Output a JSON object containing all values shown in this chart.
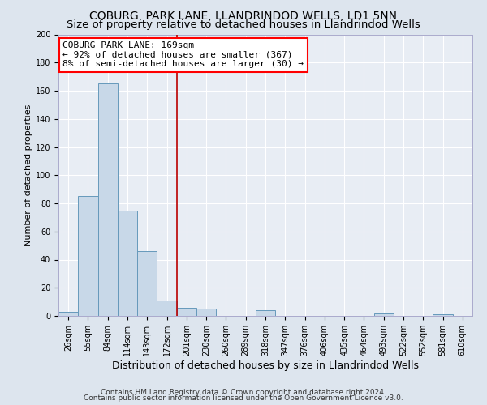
{
  "title": "COBURG, PARK LANE, LLANDRINDOD WELLS, LD1 5NN",
  "subtitle": "Size of property relative to detached houses in Llandrindod Wells",
  "xlabel": "Distribution of detached houses by size in Llandrindod Wells",
  "ylabel": "Number of detached properties",
  "bin_labels": [
    "26sqm",
    "55sqm",
    "84sqm",
    "114sqm",
    "143sqm",
    "172sqm",
    "201sqm",
    "230sqm",
    "260sqm",
    "289sqm",
    "318sqm",
    "347sqm",
    "376sqm",
    "406sqm",
    "435sqm",
    "464sqm",
    "493sqm",
    "522sqm",
    "552sqm",
    "581sqm",
    "610sqm"
  ],
  "bar_values": [
    3,
    85,
    165,
    75,
    46,
    11,
    6,
    5,
    0,
    0,
    4,
    0,
    0,
    0,
    0,
    0,
    2,
    0,
    0,
    1,
    0
  ],
  "bar_color": "#c8d8e8",
  "bar_edge_color": "#6699bb",
  "vline_x_idx": 5.5,
  "vline_color": "#bb0000",
  "annotation_title": "COBURG PARK LANE: 169sqm",
  "annotation_line1": "← 92% of detached houses are smaller (367)",
  "annotation_line2": "8% of semi-detached houses are larger (30) →",
  "ylim": [
    0,
    200
  ],
  "yticks": [
    0,
    20,
    40,
    60,
    80,
    100,
    120,
    140,
    160,
    180,
    200
  ],
  "footer1": "Contains HM Land Registry data © Crown copyright and database right 2024.",
  "footer2": "Contains public sector information licensed under the Open Government Licence v3.0.",
  "background_color": "#dde5ee",
  "plot_bg_color": "#e8edf4",
  "grid_color": "#ffffff",
  "title_fontsize": 10,
  "subtitle_fontsize": 9.5,
  "xlabel_fontsize": 9,
  "ylabel_fontsize": 8,
  "tick_fontsize": 7,
  "annotation_fontsize": 8,
  "footer_fontsize": 6.5
}
